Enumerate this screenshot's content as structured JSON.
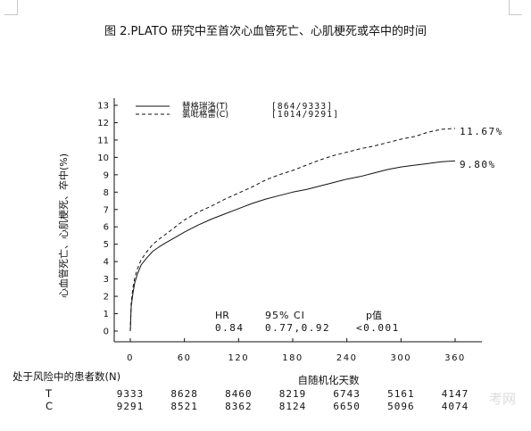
{
  "figure_title": "图 2.PLATO 研究中至首次心血管死亡、心肌梗死或卒中的时间",
  "risk_table": {
    "heading": "处于风险中的患者数(N)",
    "rows": [
      {
        "label": "T",
        "values": [
          "9333",
          "8628",
          "8460",
          "8219",
          "6743",
          "5161",
          "4147"
        ]
      },
      {
        "label": "C",
        "values": [
          "9291",
          "8521",
          "8362",
          "8124",
          "6650",
          "5096",
          "4074"
        ]
      }
    ]
  },
  "watermark": "考网",
  "colors": {
    "line": "#111111",
    "axis": "#111111",
    "corner": "#c8c8c8"
  },
  "chart_data": {
    "type": "line",
    "xlabel": "自随机化天数",
    "ylabel": "心血管死亡、心肌梗死、卒中(%)",
    "xlim": [
      0,
      372
    ],
    "ylim": [
      0,
      13.5
    ],
    "x_ticks": [
      0,
      60,
      120,
      180,
      240,
      300,
      360
    ],
    "y_ticks": [
      0,
      1,
      2,
      3,
      4,
      5,
      6,
      7,
      8,
      9,
      10,
      11,
      12,
      13
    ],
    "grid": false,
    "legend_position": "top-left",
    "series": [
      {
        "name": "替格瑞洛(T)",
        "legend_count": "[864/9333]",
        "line_style": "solid",
        "end_label": "9.80%",
        "points": [
          [
            0,
            0
          ],
          [
            1,
            1.4
          ],
          [
            3,
            2.2
          ],
          [
            5,
            2.8
          ],
          [
            8,
            3.3
          ],
          [
            12,
            3.8
          ],
          [
            18,
            4.2
          ],
          [
            25,
            4.6
          ],
          [
            32,
            4.85
          ],
          [
            40,
            5.1
          ],
          [
            50,
            5.4
          ],
          [
            60,
            5.7
          ],
          [
            75,
            6.1
          ],
          [
            90,
            6.45
          ],
          [
            105,
            6.75
          ],
          [
            120,
            7.05
          ],
          [
            135,
            7.35
          ],
          [
            150,
            7.6
          ],
          [
            165,
            7.8
          ],
          [
            180,
            8.0
          ],
          [
            195,
            8.15
          ],
          [
            210,
            8.35
          ],
          [
            225,
            8.55
          ],
          [
            240,
            8.75
          ],
          [
            255,
            8.9
          ],
          [
            270,
            9.1
          ],
          [
            285,
            9.3
          ],
          [
            300,
            9.45
          ],
          [
            315,
            9.55
          ],
          [
            330,
            9.65
          ],
          [
            345,
            9.75
          ],
          [
            360,
            9.8
          ]
        ]
      },
      {
        "name": "氯吡格雷(C)",
        "legend_count": "[1014/9291]",
        "line_style": "dashed",
        "end_label": "11.67%",
        "points": [
          [
            0,
            0
          ],
          [
            1,
            1.6
          ],
          [
            3,
            2.5
          ],
          [
            5,
            3.1
          ],
          [
            8,
            3.6
          ],
          [
            12,
            4.1
          ],
          [
            18,
            4.55
          ],
          [
            25,
            5.0
          ],
          [
            32,
            5.3
          ],
          [
            40,
            5.6
          ],
          [
            50,
            6.0
          ],
          [
            60,
            6.4
          ],
          [
            75,
            6.85
          ],
          [
            90,
            7.2
          ],
          [
            105,
            7.6
          ],
          [
            120,
            7.95
          ],
          [
            135,
            8.3
          ],
          [
            150,
            8.7
          ],
          [
            165,
            9.0
          ],
          [
            180,
            9.25
          ],
          [
            195,
            9.55
          ],
          [
            210,
            9.85
          ],
          [
            225,
            10.1
          ],
          [
            240,
            10.3
          ],
          [
            255,
            10.5
          ],
          [
            270,
            10.65
          ],
          [
            285,
            10.85
          ],
          [
            300,
            11.05
          ],
          [
            315,
            11.2
          ],
          [
            330,
            11.45
          ],
          [
            345,
            11.62
          ],
          [
            360,
            11.67
          ]
        ]
      }
    ],
    "annotations": {
      "hr_label": "HR",
      "ci_label": "95% CI",
      "p_label": "p值",
      "hr_value": "0.84",
      "ci_value": "0.77,0.92",
      "p_value": "<0.001"
    }
  }
}
